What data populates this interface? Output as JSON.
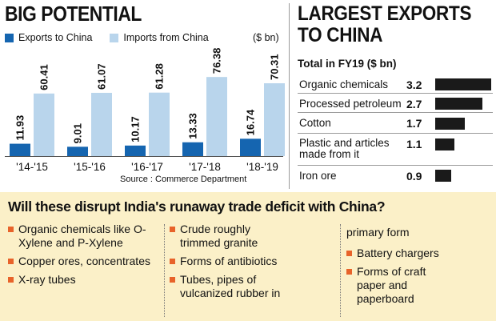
{
  "chart_data": {
    "type": "bar",
    "title": "BIG POTENTIAL",
    "unit": "($ bn)",
    "categories": [
      "'14-'15",
      "'15-'16",
      "'16-'17",
      "'17-'18",
      "'18-'19"
    ],
    "series": [
      {
        "name": "Exports to China",
        "values": [
          11.93,
          9.01,
          10.17,
          13.33,
          16.74
        ],
        "labels": [
          "11.93",
          "9.01",
          "10.17",
          "13.33",
          "16.74"
        ]
      },
      {
        "name": "Imports from China",
        "values": [
          60.41,
          61.07,
          61.28,
          76.38,
          70.31
        ],
        "labels": [
          "60.41",
          "61.07",
          "61.28",
          "76.38",
          "70.31"
        ]
      }
    ],
    "ylim": [
      0,
      85
    ],
    "source": "Source : Commerce Department",
    "colors": {
      "exports": "#1565b0",
      "imports": "#b9d5ec"
    }
  },
  "exports_chart": {
    "title_line1": "LARGEST EXPORTS",
    "title_line2": "TO CHINA",
    "subtitle": "Total in FY19 ($ bn)",
    "items": [
      {
        "label": "Organic chemicals",
        "value": "3.2",
        "num": 3.2
      },
      {
        "label": "Processed petroleum",
        "value": "2.7",
        "num": 2.7
      },
      {
        "label": "Cotton",
        "value": "1.7",
        "num": 1.7
      },
      {
        "label": "Plastic and articles made from it",
        "value": "1.1",
        "num": 1.1
      },
      {
        "label": "Iron ore",
        "value": "0.9",
        "num": 0.9
      }
    ],
    "bar_color": "#1a1a1a"
  },
  "bottom": {
    "title": "Will these disrupt India's runaway trade deficit with China?",
    "col1": [
      "Organic chemicals like O-Xylene and P-Xylene",
      "Copper ores, concentrates",
      "X-ray tubes"
    ],
    "col2": [
      "Crude roughly trimmed granite",
      "Forms of antibiotics",
      "Tubes, pipes of vulcanized rubber in"
    ],
    "col3_cont": "primary form",
    "col3": [
      "Battery chargers",
      "Forms of craft paper and paperboard"
    ],
    "bullet_color": "#e8632a",
    "background": "#fbf0c8"
  }
}
